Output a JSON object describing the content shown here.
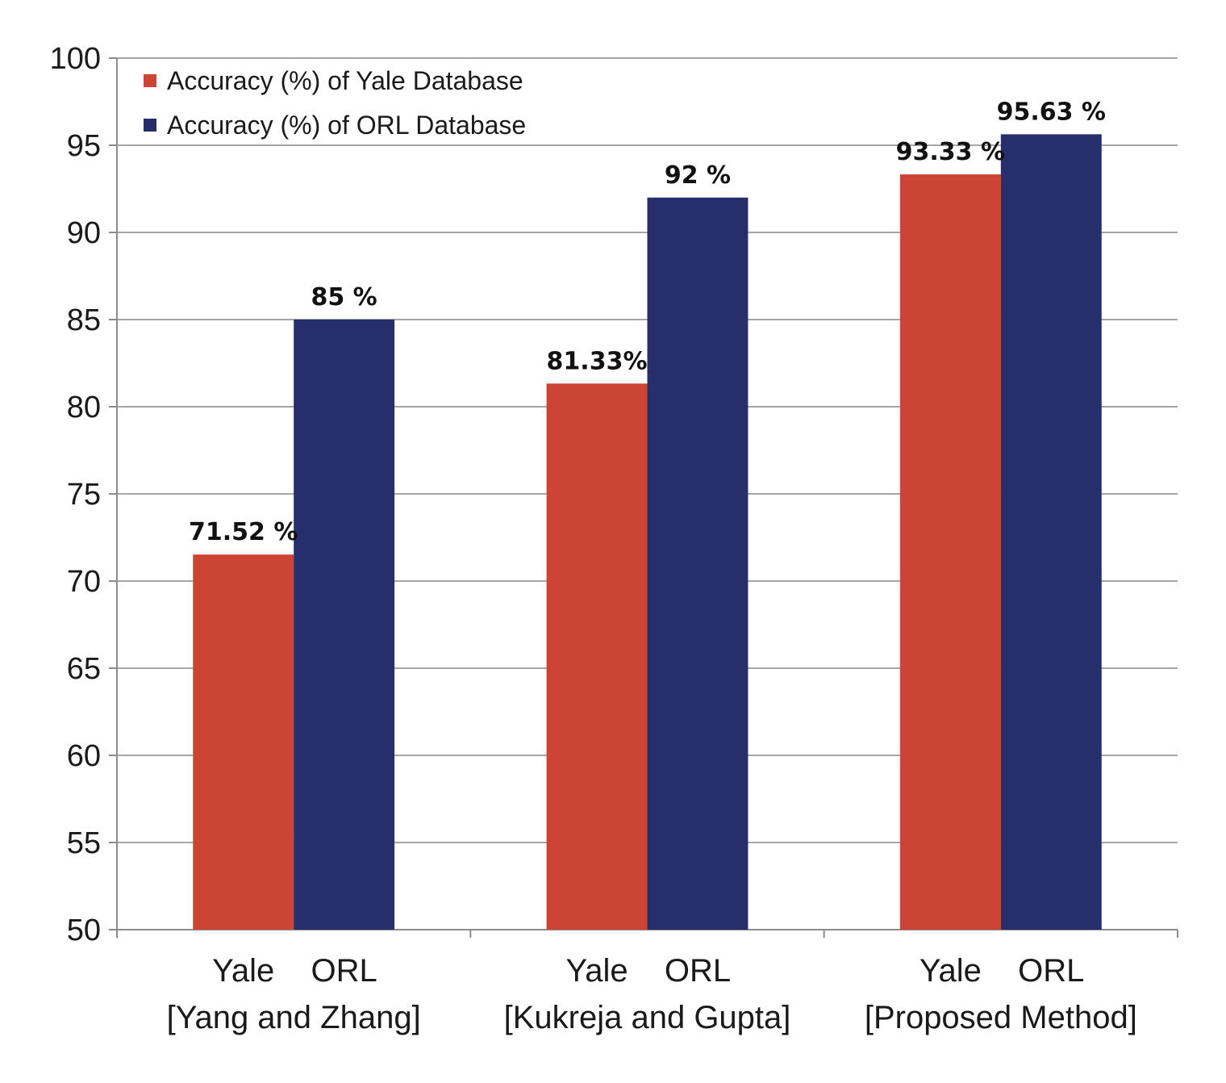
{
  "chart_data": {
    "type": "bar",
    "groups": [
      {
        "bars": [
          "Yale",
          "ORL"
        ],
        "label": "[Yang and Zhang]"
      },
      {
        "bars": [
          "Yale",
          "ORL"
        ],
        "label": "[Kukreja and Gupta]"
      },
      {
        "bars": [
          "Yale",
          "ORL"
        ],
        "label": "[Proposed Method]"
      }
    ],
    "series": [
      {
        "name": "Accuracy (%) of Yale Database",
        "color": "#cc4434",
        "values": [
          71.52,
          81.33,
          93.33
        ],
        "labels": [
          "71.52 %",
          "81.33%",
          "93.33  %"
        ]
      },
      {
        "name": "Accuracy (%) of ORL Database",
        "color": "#262e6b",
        "values": [
          85,
          92,
          95.63
        ],
        "labels": [
          "85 %",
          "92 %",
          "95.63 %"
        ]
      }
    ],
    "ylim": [
      50,
      100
    ],
    "yticks": [
      50,
      55,
      60,
      65,
      70,
      75,
      80,
      85,
      90,
      95,
      100
    ],
    "grid": true,
    "legend_position": "top-left",
    "title": "",
    "xlabel": "",
    "ylabel": ""
  }
}
